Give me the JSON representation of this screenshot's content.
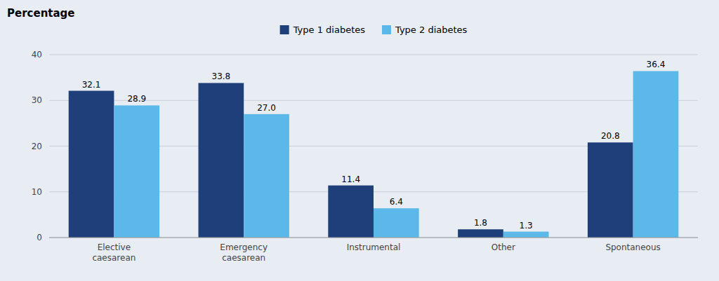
{
  "chart_data": {
    "type": "bar",
    "y_label": "Percentage",
    "categories": [
      "Elective\ncaesarean",
      "Emergency\ncaesarean",
      "Instrumental",
      "Other",
      "Spontaneous"
    ],
    "series": [
      {
        "name": "Type 1 diabetes",
        "color": "#1f3f7a",
        "values": [
          32.1,
          33.8,
          11.4,
          1.8,
          20.8
        ],
        "value_labels": [
          "32.1",
          "33.8",
          "11.4",
          "1.8",
          "20.8"
        ]
      },
      {
        "name": "Type 2 diabetes",
        "color": "#5bb8e8",
        "values": [
          28.9,
          27.0,
          6.4,
          1.3,
          36.4
        ],
        "value_labels": [
          "28.9",
          "27.0",
          "6.4",
          "1.3",
          "36.4"
        ]
      }
    ],
    "ylim": [
      0,
      40
    ],
    "yticks": [
      0,
      10,
      20,
      30,
      40
    ],
    "grid": true,
    "legend": "top",
    "data_labels": true
  }
}
